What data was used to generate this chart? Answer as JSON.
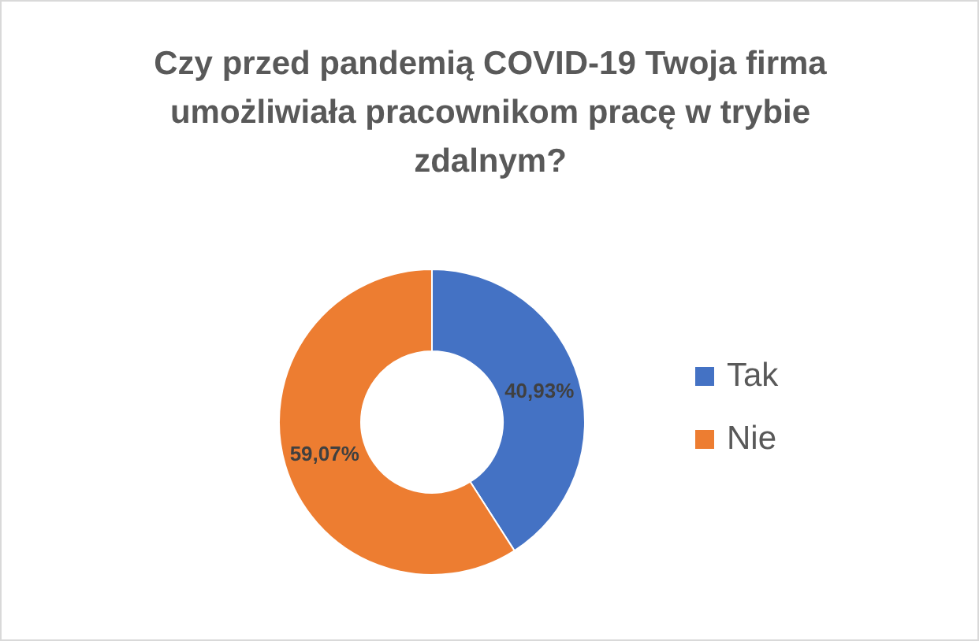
{
  "chart_data": {
    "type": "donut",
    "title": "Czy przed pandemią COVID-19 Twoja firma umożliwiała pracownikom pracę w trybie zdalnym?",
    "categories": [
      "Tak",
      "Nie"
    ],
    "values": [
      40.93,
      59.07
    ],
    "colors": [
      "#4472c4",
      "#ed7d31"
    ],
    "value_labels": [
      "40,93%",
      "59,07%"
    ],
    "legend": "right"
  }
}
